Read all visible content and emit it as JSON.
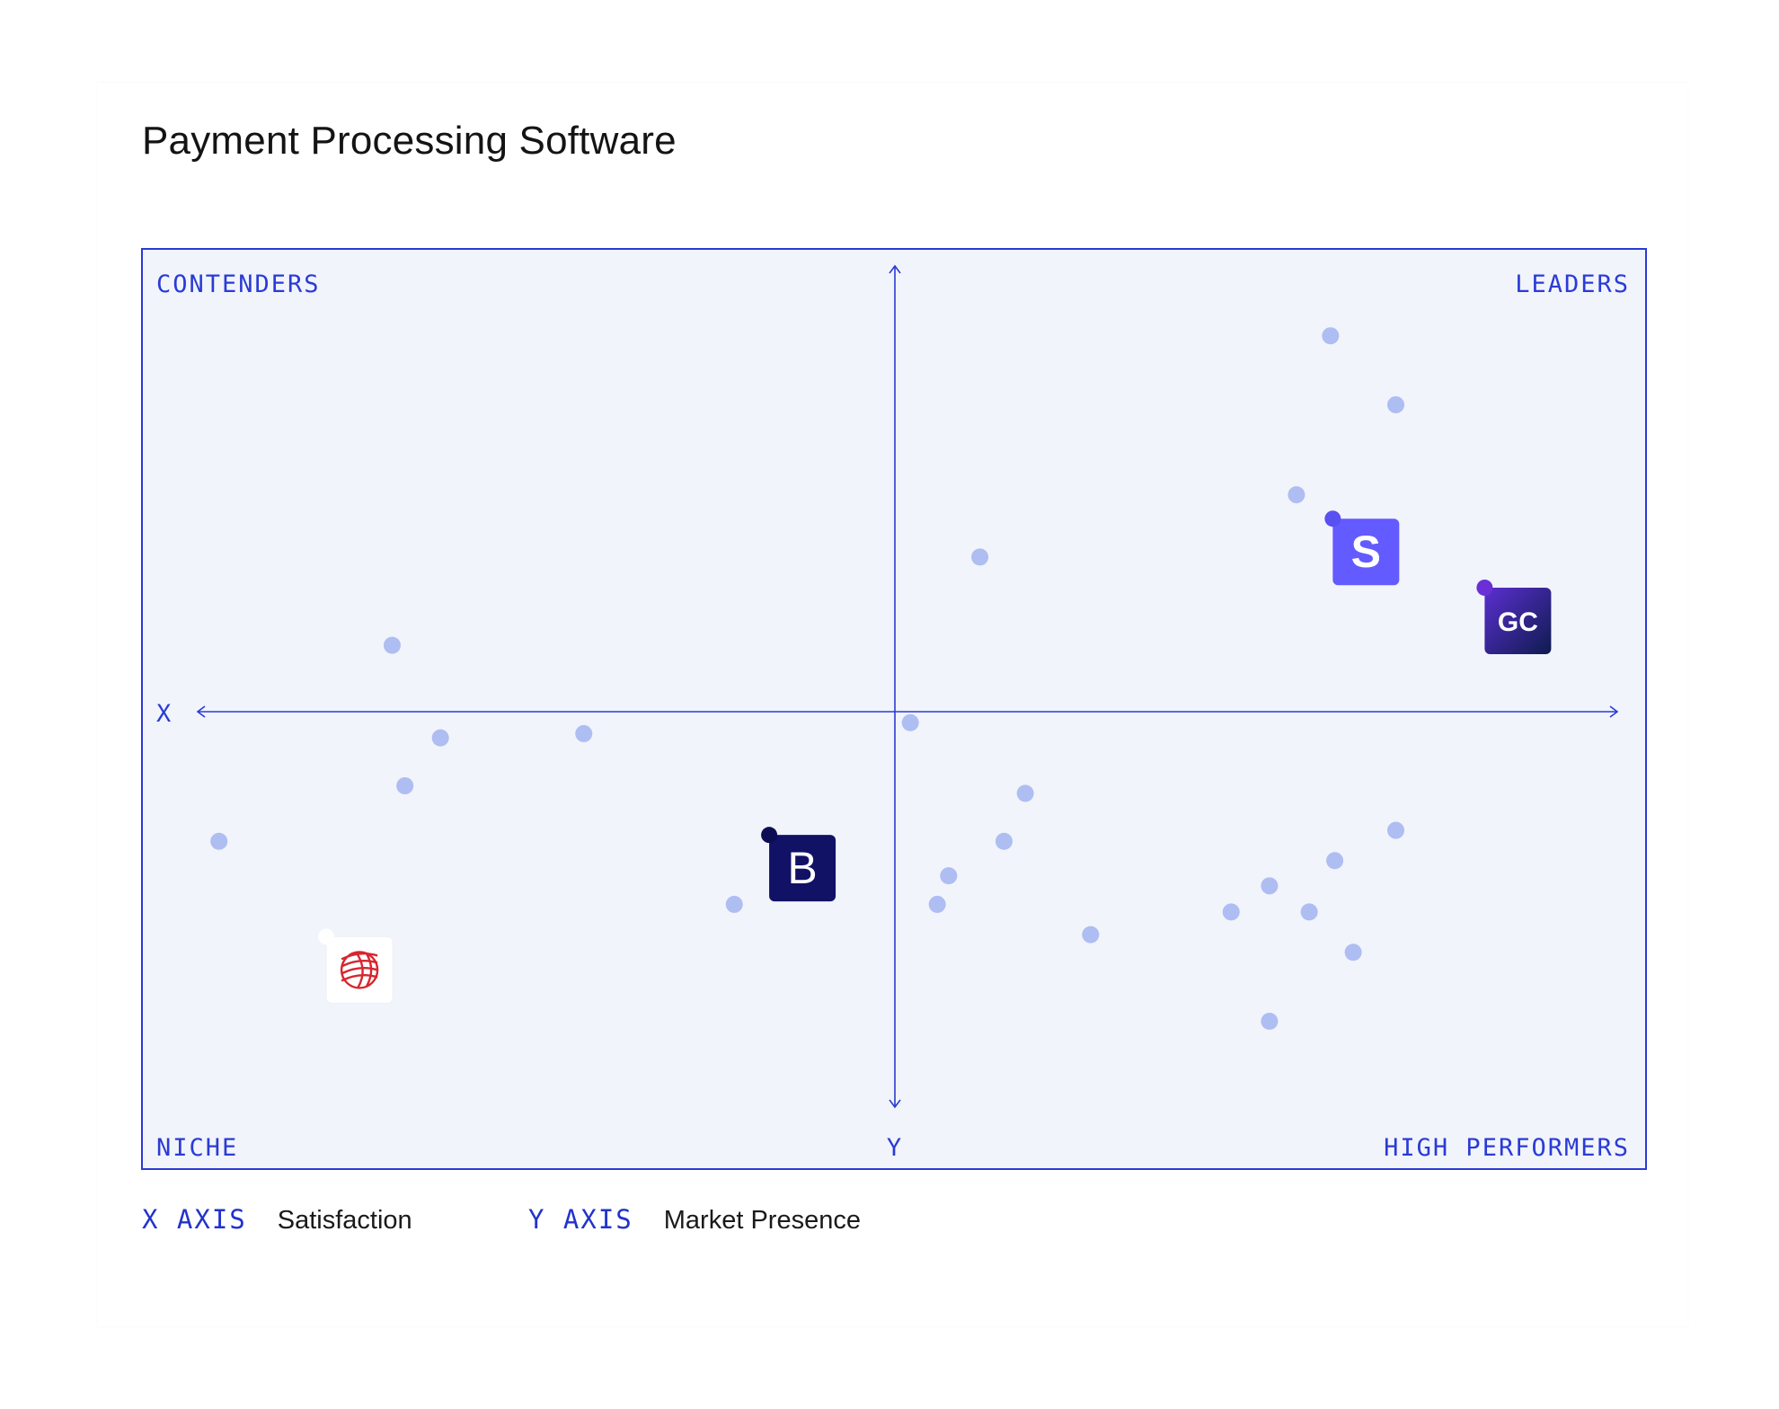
{
  "title": "Payment Processing Software",
  "colors": {
    "accent": "#2a3bd6",
    "plot_bg": "#f1f4fb",
    "dot": "#aebdf2"
  },
  "chart_data": {
    "type": "scatter",
    "title": "Payment Processing Software",
    "xlabel": "Satisfaction",
    "ylabel": "Market Presence",
    "axis_x_marker": "X",
    "axis_y_marker": "Y",
    "xlim": [
      0,
      100
    ],
    "ylim": [
      0,
      100
    ],
    "quadrants": {
      "top_left": "CONTENDERS",
      "top_right": "LEADERS",
      "bottom_left": "NICHE",
      "bottom_right": "HIGH PERFORMERS"
    },
    "points": [
      {
        "x": 79.8,
        "y": 91.7
      },
      {
        "x": 84.4,
        "y": 83.5
      },
      {
        "x": 77.4,
        "y": 72.8
      },
      {
        "x": 55.1,
        "y": 65.4
      },
      {
        "x": 13.7,
        "y": 54.9
      },
      {
        "x": 17.1,
        "y": 43.9
      },
      {
        "x": 27.2,
        "y": 44.4
      },
      {
        "x": 14.6,
        "y": 38.2
      },
      {
        "x": 1.5,
        "y": 31.6
      },
      {
        "x": 50.2,
        "y": 45.7
      },
      {
        "x": 58.3,
        "y": 37.3
      },
      {
        "x": 56.8,
        "y": 31.6
      },
      {
        "x": 84.4,
        "y": 32.9
      },
      {
        "x": 80.1,
        "y": 29.3
      },
      {
        "x": 52.9,
        "y": 27.5
      },
      {
        "x": 52.1,
        "y": 24.1
      },
      {
        "x": 75.5,
        "y": 26.3
      },
      {
        "x": 78.3,
        "y": 23.2
      },
      {
        "x": 81.4,
        "y": 18.4
      },
      {
        "x": 72.8,
        "y": 23.2
      },
      {
        "x": 62.9,
        "y": 20.5
      },
      {
        "x": 37.8,
        "y": 24.1
      },
      {
        "x": 41.2,
        "y": 26.2
      },
      {
        "x": 75.5,
        "y": 10.2
      }
    ],
    "vendors": [
      {
        "name": "Stripe",
        "glyph": "S",
        "x": 82.3,
        "y": 66.0,
        "bg": "#635bff",
        "fg": "#ffffff",
        "pin": "#5a4ff0"
      },
      {
        "name": "GoCardless",
        "glyph": "GC",
        "x": 93.0,
        "y": 57.8,
        "bg": "#3b1fa3",
        "fg": "#ffffff",
        "pin": "#6a2fd6"
      },
      {
        "name": "Braintree",
        "glyph": "B",
        "x": 42.6,
        "y": 28.4,
        "bg": "#111265",
        "fg": "#ffffff",
        "pin": "#0d0e52"
      },
      {
        "name": "Worldpay",
        "glyph": "",
        "x": 11.4,
        "y": 16.3,
        "bg": "#ffffff",
        "fg": "#d7262f",
        "pin": "#ffffff"
      }
    ]
  },
  "legend": {
    "x_axis_label": "X AXIS",
    "x_axis_value": "Satisfaction",
    "y_axis_label": "Y AXIS",
    "y_axis_value": "Market Presence"
  }
}
